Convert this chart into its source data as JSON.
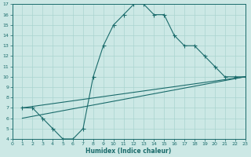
{
  "bg_color": "#cce8e5",
  "line_color": "#1a6b6b",
  "grid_color": "#aad4d0",
  "xlabel": "Humidex (Indice chaleur)",
  "xlim": [
    0,
    23
  ],
  "ylim": [
    4,
    17
  ],
  "xticks": [
    0,
    1,
    2,
    3,
    4,
    5,
    6,
    7,
    8,
    9,
    10,
    11,
    12,
    13,
    14,
    15,
    16,
    17,
    18,
    19,
    20,
    21,
    22,
    23
  ],
  "yticks": [
    4,
    5,
    6,
    7,
    8,
    9,
    10,
    11,
    12,
    13,
    14,
    15,
    16,
    17
  ],
  "main_x": [
    1,
    2,
    3,
    4,
    5,
    6,
    7,
    8,
    9,
    10,
    11,
    12,
    13,
    14,
    15,
    16,
    17,
    18,
    19,
    20,
    21,
    22,
    23
  ],
  "main_y": [
    7,
    7,
    6,
    5,
    4,
    4,
    5,
    10,
    13,
    15,
    16,
    17,
    17,
    16,
    16,
    14,
    13,
    13,
    12,
    11,
    10,
    10,
    10
  ],
  "line2_x": [
    1,
    23
  ],
  "line2_y": [
    7,
    10
  ],
  "line3_x": [
    1,
    23
  ],
  "line3_y": [
    6,
    10
  ]
}
